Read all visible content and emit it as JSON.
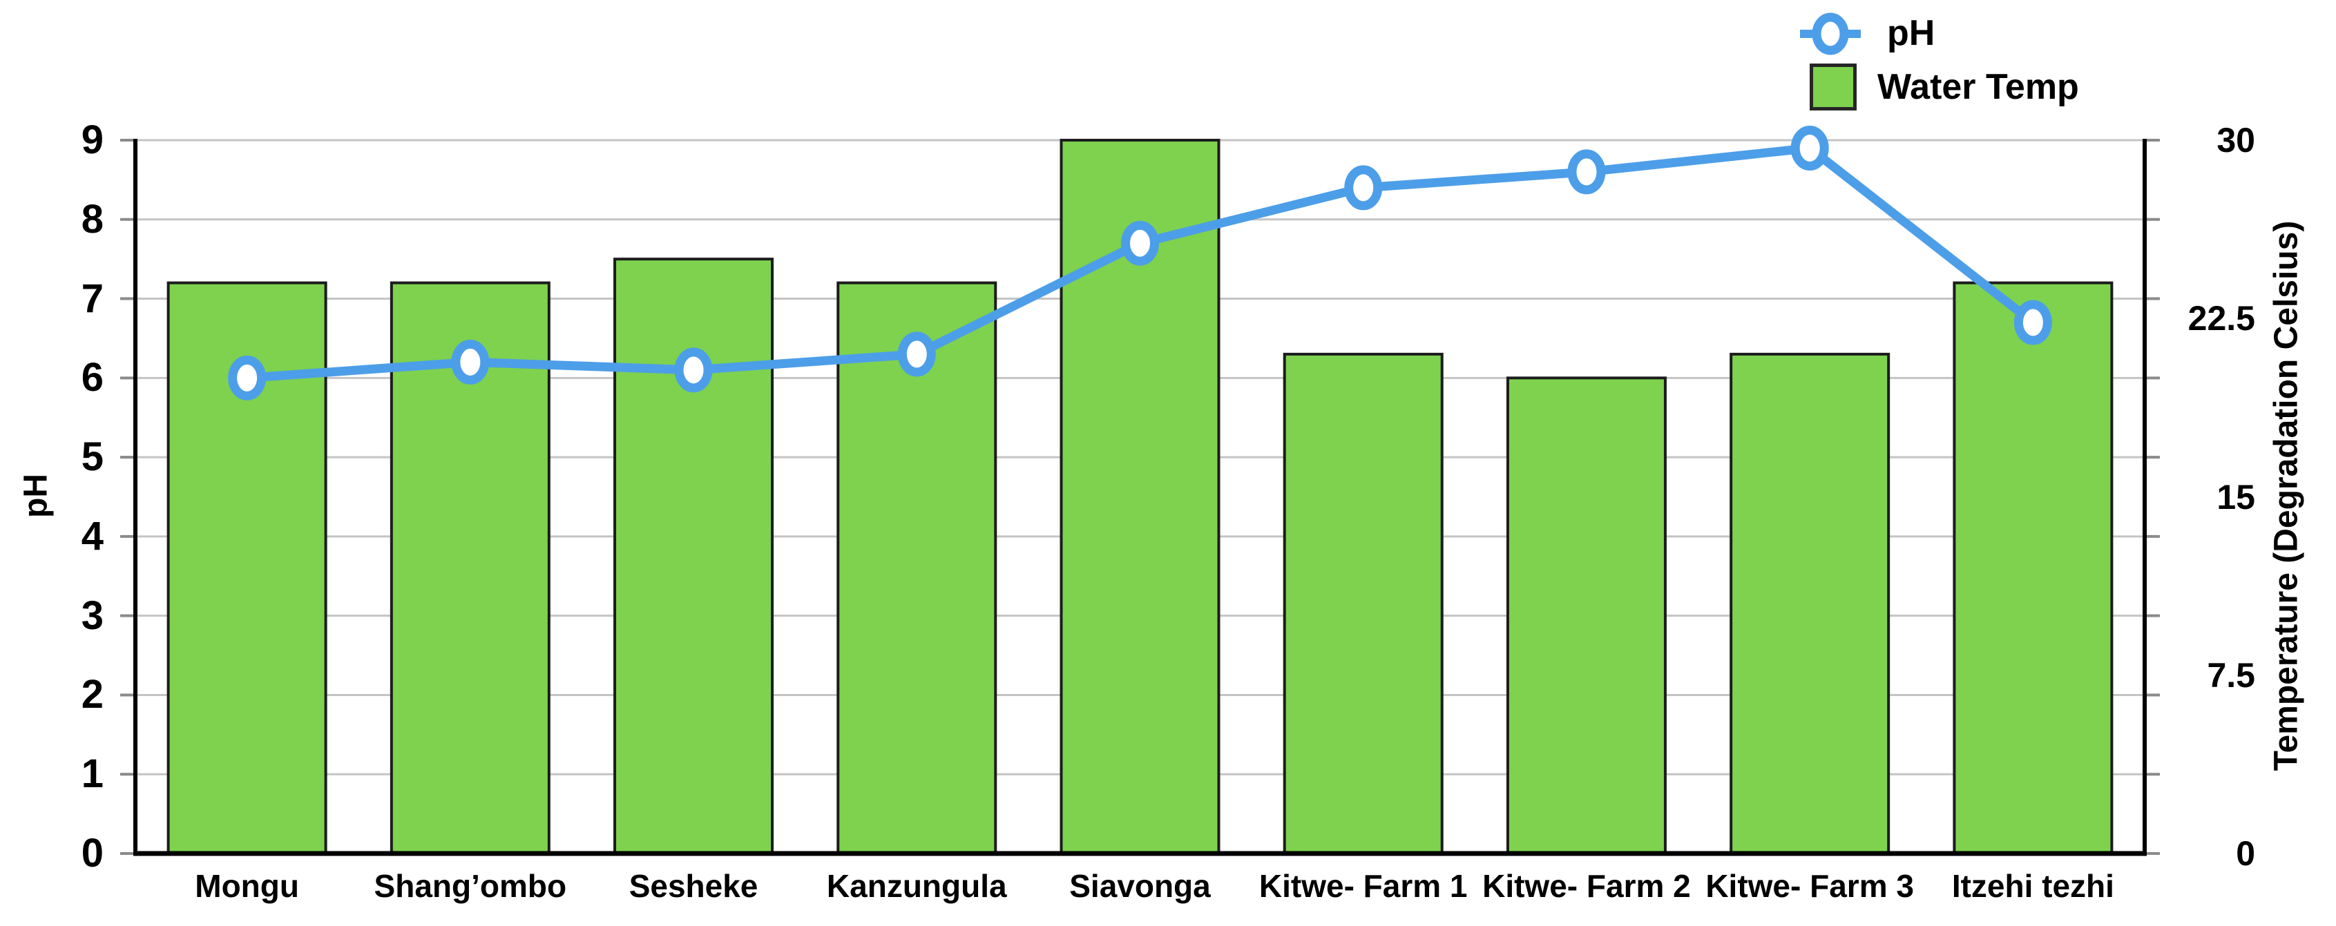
{
  "chart_data": {
    "type": "combo",
    "title": "",
    "categories": [
      "Mongu",
      "Shang’ombo",
      "Sesheke",
      "Kanzungula",
      "Siavonga",
      "Kitwe- Farm 1",
      "Kitwe- Farm 2",
      "Kitwe- Farm 3",
      "Itzehi tezhi"
    ],
    "series": [
      {
        "name": "pH",
        "type": "line",
        "axis": "left",
        "values": [
          6.0,
          6.2,
          6.1,
          6.3,
          7.7,
          8.4,
          8.6,
          8.9,
          6.7
        ]
      },
      {
        "name": "Water Temp",
        "type": "bar",
        "axis": "right",
        "values": [
          24,
          24,
          25,
          24,
          30,
          21,
          20,
          21,
          24
        ]
      }
    ],
    "left_axis": {
      "title": "pH",
      "min": 0,
      "max": 9,
      "tick_labels": [
        "9",
        "8",
        "7",
        "6",
        "5",
        "4",
        "3",
        "2",
        "1",
        "0"
      ],
      "tick_values": [
        9,
        8,
        7,
        6,
        5,
        4,
        3,
        2,
        1,
        0
      ]
    },
    "right_axis": {
      "title": "Temperature (Degradation Celsius)",
      "min": 0,
      "max": 30,
      "tick_labels": [
        "30",
        "22.5",
        "15",
        "7.5",
        "0"
      ],
      "tick_values": [
        30,
        22.5,
        15,
        7.5,
        0
      ]
    },
    "grid": true,
    "legend_position": "top-right"
  },
  "colors": {
    "bar_fill": "#7ED24E",
    "bar_border": "#1c1c1c",
    "line": "#4D9EE8",
    "marker_fill": "#FFFFFF",
    "grid": "#C4C4C4",
    "tick": "#8a8a8a",
    "axis": "#000000",
    "text": "#000000"
  }
}
